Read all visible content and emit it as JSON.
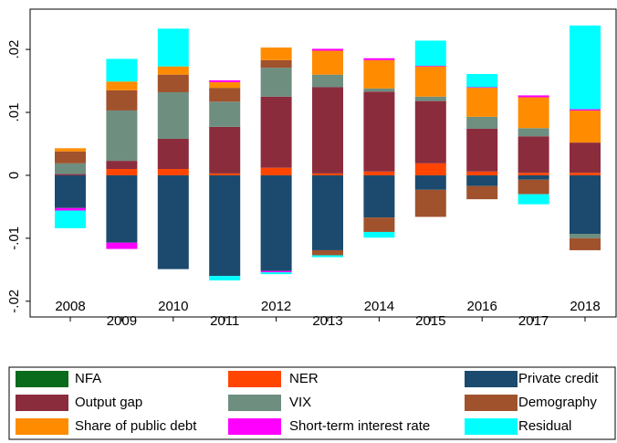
{
  "chart_data": {
    "type": "stacked_bar",
    "categories": [
      "2008",
      "2009",
      "2010",
      "2011",
      "2012",
      "2013",
      "2014",
      "2015",
      "2016",
      "2017",
      "2018"
    ],
    "series": [
      {
        "name": "NFA",
        "color": "#0b6b1c",
        "values": [
          0,
          0,
          0,
          0,
          0,
          0,
          0,
          0,
          0,
          0,
          0
        ]
      },
      {
        "name": "NER",
        "color": "#ff4500",
        "values": [
          0,
          0.001,
          0.001,
          0.0003,
          0.0012,
          0.0003,
          0.0006,
          0.0019,
          0.0006,
          0.0004,
          0.0004
        ]
      },
      {
        "name": "Private credit",
        "color": "#1b4a6e",
        "values": [
          -0.0052,
          -0.0107,
          -0.0149,
          -0.016,
          -0.0152,
          -0.0119,
          -0.0067,
          -0.0023,
          -0.0017,
          -0.0007,
          -0.0093
        ]
      },
      {
        "name": "Output gap",
        "color": "#8b2c3d",
        "values": [
          0.0002,
          0.0013,
          0.0048,
          0.0074,
          0.0113,
          0.0137,
          0.0127,
          0.0099,
          0.0068,
          0.0058,
          0.0048
        ]
      },
      {
        "name": "VIX",
        "color": "#6e8e80",
        "values": [
          0.0017,
          0.008,
          0.0074,
          0.004,
          0.0046,
          0.002,
          0.0005,
          0.0007,
          0.0019,
          0.0013,
          -0.0007
        ]
      },
      {
        "name": "Demography",
        "color": "#a0522d",
        "values": [
          0.0019,
          0.0032,
          0.0028,
          0.0022,
          0.0012,
          -0.0008,
          -0.0023,
          -0.0043,
          -0.0021,
          -0.0023,
          -0.0019
        ]
      },
      {
        "name": "Share of public debt",
        "color": "#ff8c00",
        "values": [
          0.0005,
          0.0014,
          0.0013,
          0.0009,
          0.002,
          0.0038,
          0.0045,
          0.0048,
          0.0046,
          0.0049,
          0.0051
        ]
      },
      {
        "name": "Short-term interest rate",
        "color": "#ff00ff",
        "values": [
          -0.0004,
          -0.001,
          0,
          0.0003,
          -0.0002,
          0.0003,
          0.0003,
          0.0001,
          0.0001,
          0.0003,
          0.0002
        ]
      },
      {
        "name": "Residual",
        "color": "#00ffff",
        "values": [
          -0.0028,
          0.0036,
          0.006,
          -0.0007,
          -0.0003,
          -0.0003,
          -0.0009,
          0.004,
          0.0021,
          -0.0016,
          0.0133
        ]
      }
    ],
    "ylim": [
      -0.0225,
      0.0264
    ],
    "yticks": [
      {
        "value": -0.02,
        "label": "-.02"
      },
      {
        "value": -0.01,
        "label": "-.01"
      },
      0,
      {
        "value": 0.01,
        "label": ".01"
      },
      {
        "value": 0.02,
        "label": ".02"
      }
    ]
  }
}
